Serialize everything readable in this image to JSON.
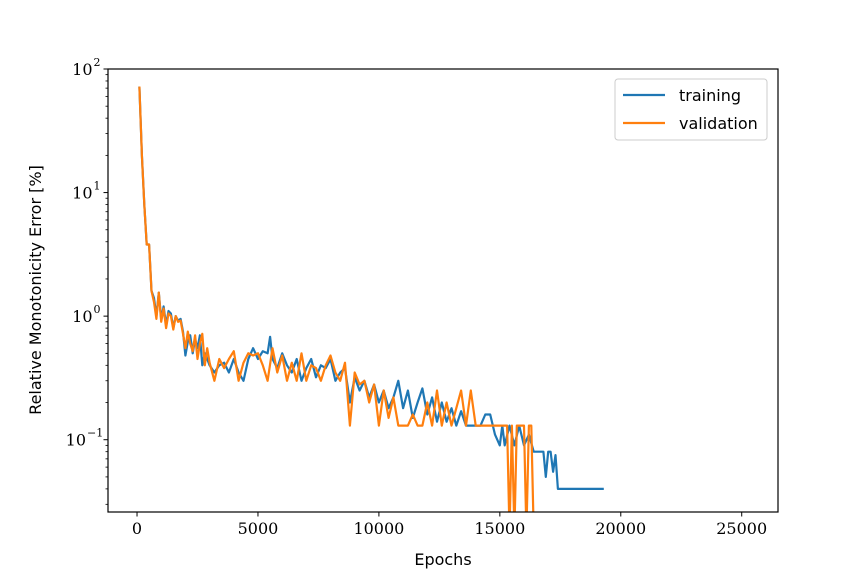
{
  "chart_data": {
    "type": "line",
    "title": "",
    "xlabel": "Epochs",
    "ylabel": "Relative Monotonicity Error [%]",
    "xlim": [
      -1200,
      26500
    ],
    "ylim": [
      0.026,
      100
    ],
    "yscale": "log",
    "grid": false,
    "legend_position": "upper right",
    "x_ticks": [
      {
        "value": 0,
        "label": "0"
      },
      {
        "value": 5000,
        "label": "5000"
      },
      {
        "value": 10000,
        "label": "10000"
      },
      {
        "value": 15000,
        "label": "15000"
      },
      {
        "value": 20000,
        "label": "20000"
      },
      {
        "value": 25000,
        "label": "25000"
      }
    ],
    "y_ticks": [
      {
        "value": 0.1,
        "base": "10",
        "exp": "−1"
      },
      {
        "value": 1,
        "base": "10",
        "exp": "0"
      },
      {
        "value": 10,
        "base": "10",
        "exp": "1"
      },
      {
        "value": 100,
        "base": "10",
        "exp": "2"
      }
    ],
    "series": [
      {
        "name": "training",
        "color": "#1f77b4",
        "points": [
          [
            100,
            72
          ],
          [
            200,
            20
          ],
          [
            300,
            8
          ],
          [
            400,
            3.8
          ],
          [
            500,
            3.8
          ],
          [
            600,
            1.6
          ],
          [
            700,
            1.4
          ],
          [
            800,
            1.0
          ],
          [
            900,
            1.55
          ],
          [
            1000,
            0.95
          ],
          [
            1100,
            1.2
          ],
          [
            1200,
            0.85
          ],
          [
            1300,
            1.1
          ],
          [
            1400,
            1.05
          ],
          [
            1500,
            0.8
          ],
          [
            1600,
            1.0
          ],
          [
            1700,
            0.92
          ],
          [
            1800,
            0.95
          ],
          [
            1900,
            0.75
          ],
          [
            2000,
            0.48
          ],
          [
            2100,
            0.62
          ],
          [
            2200,
            0.7
          ],
          [
            2300,
            0.5
          ],
          [
            2400,
            0.65
          ],
          [
            2500,
            0.55
          ],
          [
            2600,
            0.7
          ],
          [
            2700,
            0.4
          ],
          [
            2800,
            0.5
          ],
          [
            2900,
            0.45
          ],
          [
            3000,
            0.4
          ],
          [
            3200,
            0.35
          ],
          [
            3400,
            0.4
          ],
          [
            3600,
            0.42
          ],
          [
            3800,
            0.35
          ],
          [
            4000,
            0.45
          ],
          [
            4200,
            0.35
          ],
          [
            4400,
            0.3
          ],
          [
            4600,
            0.45
          ],
          [
            4800,
            0.55
          ],
          [
            5000,
            0.45
          ],
          [
            5200,
            0.52
          ],
          [
            5400,
            0.5
          ],
          [
            5500,
            0.68
          ],
          [
            5600,
            0.45
          ],
          [
            5800,
            0.38
          ],
          [
            6000,
            0.5
          ],
          [
            6200,
            0.4
          ],
          [
            6400,
            0.35
          ],
          [
            6600,
            0.45
          ],
          [
            6800,
            0.3
          ],
          [
            7000,
            0.38
          ],
          [
            7200,
            0.45
          ],
          [
            7400,
            0.32
          ],
          [
            7600,
            0.4
          ],
          [
            7800,
            0.38
          ],
          [
            8000,
            0.45
          ],
          [
            8200,
            0.3
          ],
          [
            8400,
            0.35
          ],
          [
            8600,
            0.38
          ],
          [
            8800,
            0.2
          ],
          [
            9000,
            0.32
          ],
          [
            9200,
            0.25
          ],
          [
            9400,
            0.3
          ],
          [
            9600,
            0.22
          ],
          [
            9800,
            0.28
          ],
          [
            10000,
            0.2
          ],
          [
            10200,
            0.25
          ],
          [
            10400,
            0.18
          ],
          [
            10600,
            0.22
          ],
          [
            10800,
            0.3
          ],
          [
            11000,
            0.18
          ],
          [
            11200,
            0.25
          ],
          [
            11400,
            0.15
          ],
          [
            11600,
            0.2
          ],
          [
            11800,
            0.26
          ],
          [
            12000,
            0.16
          ],
          [
            12200,
            0.22
          ],
          [
            12400,
            0.14
          ],
          [
            12600,
            0.2
          ],
          [
            12800,
            0.14
          ],
          [
            13000,
            0.18
          ],
          [
            13200,
            0.13
          ],
          [
            13400,
            0.17
          ],
          [
            13600,
            0.13
          ],
          [
            13800,
            0.13
          ],
          [
            14000,
            0.13
          ],
          [
            14200,
            0.13
          ],
          [
            14400,
            0.16
          ],
          [
            14600,
            0.16
          ],
          [
            14800,
            0.11
          ],
          [
            15000,
            0.09
          ],
          [
            15100,
            0.13
          ],
          [
            15200,
            0.09
          ],
          [
            15400,
            0.13
          ],
          [
            15600,
            0.09
          ],
          [
            15800,
            0.13
          ],
          [
            16000,
            0.09
          ],
          [
            16200,
            0.11
          ],
          [
            16400,
            0.08
          ],
          [
            16600,
            0.08
          ],
          [
            16800,
            0.08
          ],
          [
            16900,
            0.05
          ],
          [
            17000,
            0.08
          ],
          [
            17100,
            0.08
          ],
          [
            17200,
            0.055
          ],
          [
            17300,
            0.075
          ],
          [
            17400,
            0.04
          ],
          [
            17600,
            0.04
          ],
          [
            17700,
            0.04
          ],
          [
            18100,
            0.04
          ],
          [
            18400,
            0.04
          ],
          [
            19300,
            0.04
          ]
        ]
      },
      {
        "name": "validation",
        "color": "#ff7f0e",
        "points": [
          [
            100,
            72
          ],
          [
            200,
            20
          ],
          [
            300,
            8
          ],
          [
            400,
            3.8
          ],
          [
            500,
            3.8
          ],
          [
            600,
            1.6
          ],
          [
            700,
            1.3
          ],
          [
            800,
            0.95
          ],
          [
            900,
            1.55
          ],
          [
            1000,
            0.9
          ],
          [
            1100,
            1.15
          ],
          [
            1200,
            0.8
          ],
          [
            1300,
            1.05
          ],
          [
            1400,
            1.0
          ],
          [
            1500,
            0.78
          ],
          [
            1600,
            1.0
          ],
          [
            1700,
            0.9
          ],
          [
            1800,
            0.92
          ],
          [
            1900,
            0.72
          ],
          [
            2000,
            0.55
          ],
          [
            2100,
            0.75
          ],
          [
            2200,
            0.6
          ],
          [
            2300,
            0.52
          ],
          [
            2400,
            0.7
          ],
          [
            2500,
            0.45
          ],
          [
            2600,
            0.6
          ],
          [
            2700,
            0.72
          ],
          [
            2800,
            0.4
          ],
          [
            2900,
            0.55
          ],
          [
            3000,
            0.42
          ],
          [
            3200,
            0.3
          ],
          [
            3400,
            0.45
          ],
          [
            3600,
            0.38
          ],
          [
            3800,
            0.45
          ],
          [
            4000,
            0.52
          ],
          [
            4200,
            0.3
          ],
          [
            4400,
            0.42
          ],
          [
            4600,
            0.5
          ],
          [
            4800,
            0.48
          ],
          [
            5000,
            0.5
          ],
          [
            5200,
            0.4
          ],
          [
            5400,
            0.3
          ],
          [
            5600,
            0.55
          ],
          [
            5800,
            0.35
          ],
          [
            6000,
            0.48
          ],
          [
            6200,
            0.3
          ],
          [
            6400,
            0.42
          ],
          [
            6600,
            0.3
          ],
          [
            6800,
            0.5
          ],
          [
            7000,
            0.3
          ],
          [
            7200,
            0.4
          ],
          [
            7400,
            0.38
          ],
          [
            7600,
            0.3
          ],
          [
            7800,
            0.4
          ],
          [
            8000,
            0.48
          ],
          [
            8200,
            0.35
          ],
          [
            8400,
            0.3
          ],
          [
            8600,
            0.42
          ],
          [
            8800,
            0.13
          ],
          [
            9000,
            0.35
          ],
          [
            9200,
            0.28
          ],
          [
            9400,
            0.3
          ],
          [
            9600,
            0.2
          ],
          [
            9800,
            0.28
          ],
          [
            10000,
            0.13
          ],
          [
            10200,
            0.25
          ],
          [
            10400,
            0.15
          ],
          [
            10600,
            0.22
          ],
          [
            10800,
            0.13
          ],
          [
            11000,
            0.13
          ],
          [
            11200,
            0.13
          ],
          [
            11400,
            0.16
          ],
          [
            11600,
            0.13
          ],
          [
            11800,
            0.13
          ],
          [
            12000,
            0.2
          ],
          [
            12200,
            0.13
          ],
          [
            12400,
            0.25
          ],
          [
            12600,
            0.13
          ],
          [
            12800,
            0.2
          ],
          [
            13000,
            0.13
          ],
          [
            13200,
            0.18
          ],
          [
            13400,
            0.25
          ],
          [
            13600,
            0.13
          ],
          [
            13800,
            0.25
          ],
          [
            14000,
            0.13
          ],
          [
            14200,
            0.13
          ],
          [
            14400,
            0.13
          ],
          [
            14600,
            0.13
          ],
          [
            14800,
            0.13
          ],
          [
            15000,
            0.13
          ],
          [
            15200,
            0.13
          ],
          [
            15300,
            0.13
          ],
          [
            15400,
            0.001
          ],
          [
            15500,
            0.13
          ],
          [
            15600,
            0.001
          ],
          [
            15700,
            0.13
          ],
          [
            15800,
            0.13
          ],
          [
            16000,
            0.13
          ],
          [
            16100,
            0.001
          ],
          [
            16200,
            0.13
          ],
          [
            16300,
            0.13
          ],
          [
            16400,
            0.001
          ]
        ]
      }
    ]
  }
}
